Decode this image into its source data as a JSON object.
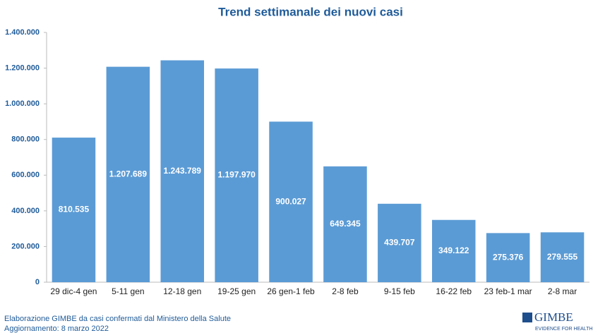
{
  "chart_data": {
    "type": "bar",
    "title": "Trend settimanale dei nuovi casi",
    "categories": [
      "29 dic-4 gen",
      "5-11 gen",
      "12-18 gen",
      "19-25 gen",
      "26 gen-1 feb",
      "2-8 feb",
      "9-15 feb",
      "16-22 feb",
      "23 feb-1 mar",
      "2-8 mar"
    ],
    "values": [
      810535,
      1207689,
      1243789,
      1197970,
      900027,
      649345,
      439707,
      349122,
      275376,
      279555
    ],
    "value_labels": [
      "810.535",
      "1.207.689",
      "1.243.789",
      "1.197.970",
      "900.027",
      "649.345",
      "439.707",
      "349.122",
      "275.376",
      "279.555"
    ],
    "color": "#5b9bd5",
    "ylim": [
      0,
      1400000
    ],
    "yticks": [
      0,
      {
        "value": 200000,
        "label": "200.000"
      },
      {
        "value": 400000,
        "label": "400.000"
      },
      {
        "value": 600000,
        "label": "600.000"
      },
      {
        "value": 800000,
        "label": "800.000"
      },
      {
        "value": 1000000,
        "label": "1.000.000"
      },
      {
        "value": 1200000,
        "label": "1.200.000"
      },
      {
        "value": 1400000,
        "label": "1.400.000"
      }
    ],
    "grid": false,
    "source": "Elaborazione GIMBE da casi confermati dal Ministero della Salute",
    "updated": "Aggiornamento: 8 marzo 2022",
    "logo": "GIMBE",
    "logo_tagline": "EVIDENCE FOR HEALTH"
  }
}
